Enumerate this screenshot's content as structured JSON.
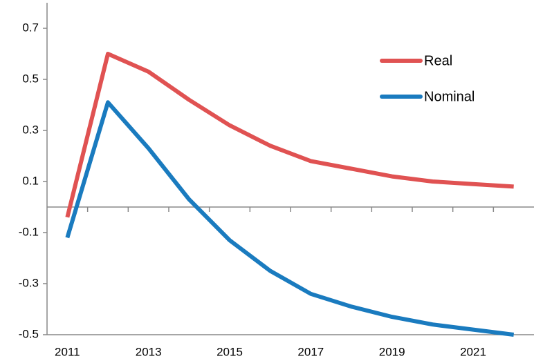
{
  "chart_data": {
    "type": "line",
    "categories": [
      "2011",
      null,
      "2013",
      null,
      "2015",
      null,
      "2017",
      null,
      "2019",
      null,
      "2021",
      null
    ],
    "series": [
      {
        "name": "Real",
        "color": "#e05252",
        "values": [
          -0.04,
          0.6,
          0.53,
          0.42,
          0.32,
          0.24,
          0.18,
          0.15,
          0.12,
          0.1,
          0.09,
          0.08
        ]
      },
      {
        "name": "Nominal",
        "color": "#1a7bbf",
        "values": [
          -0.12,
          0.41,
          0.23,
          0.03,
          -0.13,
          -0.25,
          -0.34,
          -0.39,
          -0.43,
          -0.46,
          -0.48,
          -0.5
        ]
      }
    ],
    "ylim": [
      -0.5,
      0.8
    ],
    "yticks": [
      0.7,
      0.5,
      0.3,
      0.1,
      -0.1,
      -0.3,
      -0.5
    ],
    "legend": "top-right"
  }
}
